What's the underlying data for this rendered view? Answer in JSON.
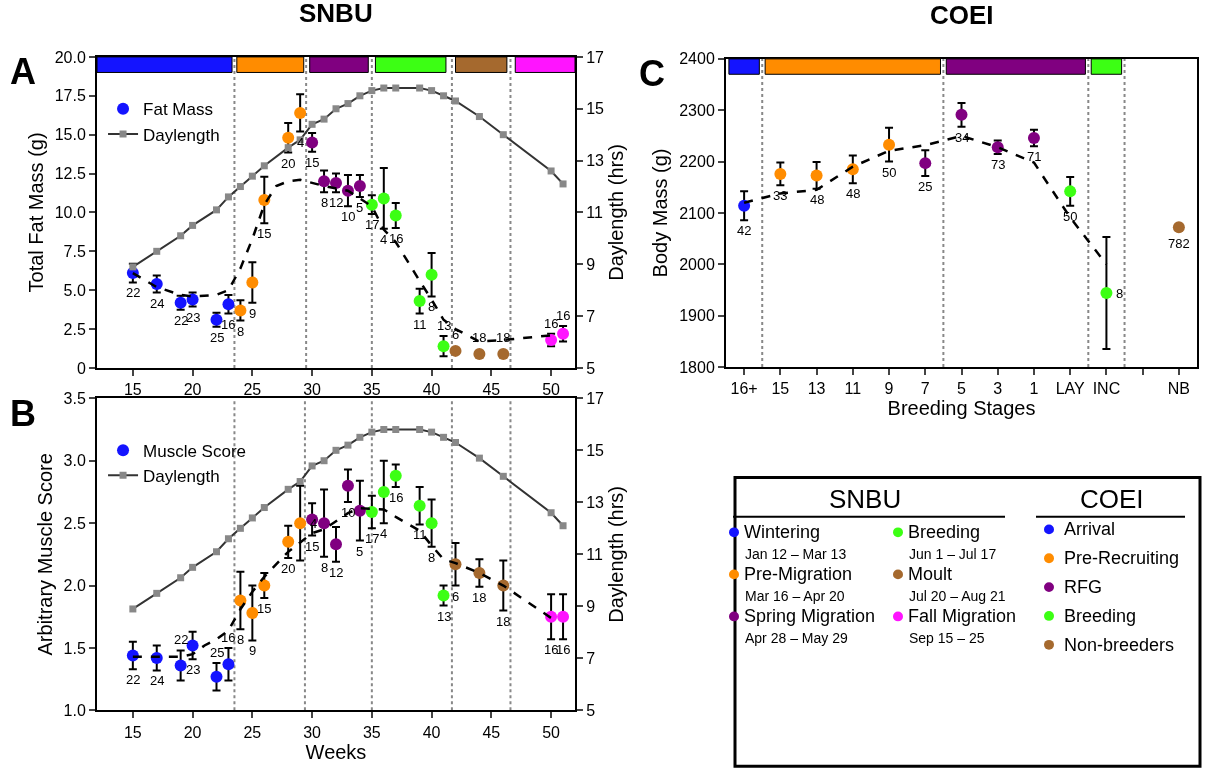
{
  "chart_data": [
    {
      "type": "scatter",
      "title": "SNBU",
      "xlim": [
        12,
        52
      ],
      "xticks": [
        15,
        20,
        25,
        30,
        35,
        40,
        45,
        50
      ],
      "ylabel": "Total Fat Mass (g)",
      "ylim": [
        0,
        20
      ],
      "yticks": [
        0,
        2.5,
        {
          "value": 5,
          "label": "5.0"
        },
        7.5,
        {
          "value": 10,
          "label": "10.0"
        },
        12.5,
        {
          "value": 15,
          "label": "15.0"
        },
        17.5,
        {
          "value": 20,
          "label": "20.0"
        }
      ],
      "y2label": "Daylength (hrs)",
      "y2lim": [
        5,
        17
      ],
      "y2ticks": [
        5,
        7,
        9,
        11,
        13,
        15,
        17
      ],
      "legend": "top left",
      "marker": "circle",
      "annotations": [
        "A",
        {
          "text": "22",
          "x": 15,
          "y": 6.1
        },
        {
          "text": "24",
          "x": 17,
          "y": 5.4
        },
        {
          "text": "22",
          "x": 19,
          "y": 4.2
        },
        {
          "text": "23",
          "x": 20,
          "y": 4.4
        },
        {
          "text": "25",
          "x": 22,
          "y": 3.1
        },
        {
          "text": "16",
          "x": 23,
          "y": 4.1
        },
        {
          "text": "8",
          "x": 24,
          "y": 3.7
        },
        {
          "text": "9",
          "x": 25,
          "y": 5.5
        },
        {
          "text": "15",
          "x": 26,
          "y": 10.8
        },
        {
          "text": "20",
          "x": 28,
          "y": 14.8
        },
        {
          "text": "4",
          "x": 29,
          "y": 16.4
        },
        {
          "text": "15",
          "x": 30,
          "y": 14.5
        },
        {
          "text": "8",
          "x": 31,
          "y": 12.0
        },
        {
          "text": "12",
          "x": 32,
          "y": 11.9
        },
        {
          "text": "10",
          "x": 33,
          "y": 11.4
        },
        {
          "text": "5",
          "x": 34,
          "y": 11.7
        },
        {
          "text": "17",
          "x": 35,
          "y": 10.5
        },
        {
          "text": "4",
          "x": 36,
          "y": 10.9
        },
        {
          "text": "16",
          "x": 37,
          "y": 9.8
        },
        {
          "text": "11",
          "x": 39,
          "y": 4.3
        },
        {
          "text": "8",
          "x": 40,
          "y": 6.0
        },
        {
          "text": "13",
          "x": 41,
          "y": 1.4
        },
        {
          "text": "6",
          "x": 42,
          "y": 1.1
        },
        {
          "text": "18",
          "x": 44,
          "y": 0.9
        },
        {
          "text": "18",
          "x": 46,
          "y": 0.9
        },
        {
          "text": "16",
          "x": 50,
          "y": 1.8
        },
        {
          "text": "16",
          "x": 51,
          "y": 2.2
        }
      ],
      "ref_lines": [
        {
          "axis": "x",
          "value": 23.5,
          "color": "#888888",
          "line_style": "dotted"
        },
        {
          "axis": "x",
          "value": 29.5,
          "color": "#888888",
          "line_style": "dotted"
        },
        {
          "axis": "x",
          "value": 35,
          "color": "#888888",
          "line_style": "dotted"
        },
        {
          "axis": "x",
          "value": 41.7,
          "color": "#888888",
          "line_style": "dotted"
        },
        {
          "axis": "x",
          "value": 46.6,
          "color": "#888888",
          "line_style": "dotted"
        }
      ],
      "bands": [
        {
          "axis": "x",
          "from": 12,
          "to": 23.3,
          "color": "#1414ff"
        },
        {
          "axis": "x",
          "from": 23.7,
          "to": 29.3,
          "color": "#ff8c00"
        },
        {
          "axis": "x",
          "from": 29.8,
          "to": 34.7,
          "color": "#800080"
        },
        {
          "axis": "x",
          "from": 35.3,
          "to": 41.2,
          "color": "#3cff14"
        },
        {
          "axis": "x",
          "from": 42.0,
          "to": 46.3,
          "color": "#a5692e"
        },
        {
          "axis": "x",
          "from": 47.0,
          "to": 52,
          "color": "#ff14ff"
        }
      ],
      "series": [
        {
          "name": "Fat Mass",
          "type": "scatter",
          "x": [
            15,
            17,
            19,
            20,
            22,
            23,
            24,
            25,
            26,
            28,
            29,
            30,
            31,
            32,
            33,
            34,
            35,
            36,
            37,
            39,
            40,
            41,
            42,
            44,
            46,
            50,
            51
          ],
          "values": [
            6.1,
            5.4,
            4.2,
            4.4,
            3.1,
            4.1,
            3.7,
            5.5,
            10.8,
            14.8,
            16.4,
            14.5,
            12.0,
            11.9,
            11.4,
            11.7,
            10.5,
            10.9,
            9.8,
            4.3,
            6.0,
            1.4,
            1.1,
            0.9,
            0.9,
            1.8,
            2.2
          ],
          "errors": [
            0.6,
            0.55,
            0.45,
            0.45,
            0.45,
            0.6,
            0.65,
            1.3,
            1.5,
            0.95,
            1.2,
            0.6,
            0.7,
            0.6,
            1.0,
            0.7,
            0.6,
            1.95,
            0.8,
            0.8,
            1.4,
            0.65,
            null,
            null,
            null,
            0.4,
            0.5
          ],
          "colors": [
            "#1414ff",
            "#1414ff",
            "#1414ff",
            "#1414ff",
            "#1414ff",
            "#1414ff",
            "#ff8c00",
            "#ff8c00",
            "#ff8c00",
            "#ff8c00",
            "#ff8c00",
            "#800080",
            "#800080",
            "#800080",
            "#800080",
            "#800080",
            "#3cff14",
            "#3cff14",
            "#3cff14",
            "#3cff14",
            "#3cff14",
            "#3cff14",
            "#a5692e",
            "#a5692e",
            "#a5692e",
            "#ff14ff",
            "#ff14ff"
          ]
        },
        {
          "type": "line",
          "line_style": "dashed",
          "marker": "none",
          "color": "#000000",
          "x": [
            15,
            17,
            19,
            20,
            22,
            23,
            24,
            25,
            26,
            27,
            28,
            29,
            30,
            31,
            33,
            35,
            36,
            37,
            39,
            40,
            41,
            42,
            44,
            46,
            50
          ],
          "values": [
            6.1,
            5.2,
            4.7,
            4.6,
            4.7,
            5.0,
            6.4,
            8.3,
            10.5,
            11.7,
            12.0,
            12.1,
            11.9,
            11.7,
            11.4,
            10.4,
            8.9,
            8.1,
            5.6,
            4.4,
            3.1,
            2.5,
            1.7,
            1.8,
            2.1
          ]
        },
        {
          "name": "Daylength",
          "type": "line",
          "axis": "y2",
          "marker": "square",
          "color": "#333333",
          "x": [
            15,
            17,
            19,
            20,
            22,
            23,
            24,
            25,
            26,
            28,
            29,
            30,
            31,
            32,
            33,
            34,
            35,
            36,
            37,
            39,
            40,
            41,
            42,
            44,
            46,
            50,
            51
          ],
          "values": [
            8.9,
            9.5,
            10.1,
            10.5,
            11.1,
            11.6,
            12.0,
            12.4,
            12.8,
            13.5,
            13.8,
            14.4,
            14.6,
            15.0,
            15.2,
            15.5,
            15.7,
            15.8,
            15.8,
            15.8,
            15.7,
            15.5,
            15.3,
            14.7,
            14.0,
            12.6,
            12.1
          ]
        }
      ]
    },
    {
      "type": "scatter",
      "xlabel": "Weeks",
      "xlim": [
        12,
        52
      ],
      "xticks": [
        15,
        20,
        25,
        30,
        35,
        40,
        45,
        50
      ],
      "ylabel": "Arbitrary Muscle Score",
      "ylim": [
        1,
        3.5
      ],
      "yticks": [
        {
          "value": 1,
          "label": "1.0"
        },
        1.5,
        {
          "value": 2,
          "label": "2.0"
        },
        2.5,
        {
          "value": 3,
          "label": "3.0"
        },
        3.5
      ],
      "y2label": "Daylength (hrs)",
      "y2lim": [
        5,
        17
      ],
      "y2ticks": [
        5,
        7,
        9,
        11,
        13,
        15,
        17
      ],
      "legend": "top left",
      "marker": "circle",
      "annotations": [
        "B",
        {
          "text": "22",
          "x": 15,
          "y": 1.44
        },
        {
          "text": "24",
          "x": 17,
          "y": 1.42
        },
        {
          "text": "22",
          "x": 19,
          "y": 1.36
        },
        {
          "text": "23",
          "x": 20,
          "y": 1.52
        },
        {
          "text": "25",
          "x": 22,
          "y": 1.27
        },
        {
          "text": "16",
          "x": 23,
          "y": 1.37
        },
        {
          "text": "8",
          "x": 24,
          "y": 1.88
        },
        {
          "text": "9",
          "x": 25,
          "y": 1.78
        },
        {
          "text": "15",
          "x": 26,
          "y": 2.0
        },
        {
          "text": "20",
          "x": 28,
          "y": 2.35
        },
        {
          "text": "4",
          "x": 29,
          "y": 2.5
        },
        {
          "text": "15",
          "x": 30,
          "y": 2.53
        },
        {
          "text": "8",
          "x": 31,
          "y": 2.5
        },
        {
          "text": "12",
          "x": 32,
          "y": 2.33
        },
        {
          "text": "10",
          "x": 33,
          "y": 2.8
        },
        {
          "text": "5",
          "x": 34,
          "y": 2.6
        },
        {
          "text": "17",
          "x": 35,
          "y": 2.59
        },
        {
          "text": "4",
          "x": 36,
          "y": 2.75
        },
        {
          "text": "16",
          "x": 37,
          "y": 2.88
        },
        {
          "text": "11",
          "x": 39,
          "y": 2.64
        },
        {
          "text": "8",
          "x": 40,
          "y": 2.5
        },
        {
          "text": "13",
          "x": 41,
          "y": 1.92
        },
        {
          "text": "6",
          "x": 42,
          "y": 2.17
        },
        {
          "text": "18",
          "x": 44,
          "y": 2.1
        },
        {
          "text": "18",
          "x": 46,
          "y": 2.0
        },
        {
          "text": "16",
          "x": 50,
          "y": 1.75
        },
        {
          "text": "16",
          "x": 51,
          "y": 1.75
        }
      ],
      "ref_lines": [
        {
          "axis": "x",
          "value": 23.5,
          "color": "#888888",
          "line_style": "dotted"
        },
        {
          "axis": "x",
          "value": 29.4,
          "color": "#888888",
          "line_style": "dotted"
        },
        {
          "axis": "x",
          "value": 35,
          "color": "#888888",
          "line_style": "dotted"
        },
        {
          "axis": "x",
          "value": 41.7,
          "color": "#888888",
          "line_style": "dotted"
        },
        {
          "axis": "x",
          "value": 46.6,
          "color": "#888888",
          "line_style": "dotted"
        }
      ],
      "series": [
        {
          "name": "Muscle Score",
          "type": "scatter",
          "x": [
            15,
            17,
            19,
            20,
            22,
            23,
            24,
            25,
            26,
            28,
            29,
            30,
            31,
            32,
            33,
            34,
            35,
            36,
            37,
            39,
            40,
            41,
            42,
            44,
            46,
            50,
            51
          ],
          "values": [
            1.44,
            1.42,
            1.36,
            1.52,
            1.27,
            1.37,
            1.88,
            1.78,
            2.0,
            2.35,
            2.5,
            2.53,
            2.5,
            2.33,
            2.8,
            2.6,
            2.59,
            2.75,
            2.88,
            2.64,
            2.5,
            1.92,
            2.17,
            2.1,
            2.0,
            1.75,
            1.75
          ],
          "errors": [
            0.11,
            0.1,
            0.12,
            0.11,
            0.11,
            0.13,
            0.23,
            0.22,
            0.1,
            0.13,
            0.3,
            0.13,
            0.27,
            0.14,
            0.13,
            0.24,
            0.13,
            0.25,
            0.09,
            0.15,
            0.19,
            0.08,
            0.17,
            0.11,
            0.2,
            0.18,
            0.18
          ],
          "colors": [
            "#1414ff",
            "#1414ff",
            "#1414ff",
            "#1414ff",
            "#1414ff",
            "#1414ff",
            "#ff8c00",
            "#ff8c00",
            "#ff8c00",
            "#ff8c00",
            "#ff8c00",
            "#800080",
            "#800080",
            "#800080",
            "#800080",
            "#800080",
            "#3cff14",
            "#3cff14",
            "#3cff14",
            "#3cff14",
            "#3cff14",
            "#3cff14",
            "#a5692e",
            "#a5692e",
            "#a5692e",
            "#ff14ff",
            "#ff14ff"
          ]
        },
        {
          "type": "line",
          "line_style": "dashed",
          "marker": "none",
          "color": "#000000",
          "x": [
            15,
            17,
            19,
            20,
            21,
            22,
            23,
            24,
            25,
            26,
            28,
            30,
            31,
            33,
            34,
            36,
            37,
            39,
            40,
            41,
            42,
            44,
            46,
            50
          ],
          "values": [
            1.43,
            1.43,
            1.43,
            1.45,
            1.52,
            1.57,
            1.64,
            1.81,
            1.95,
            2.07,
            2.27,
            2.42,
            2.45,
            2.58,
            2.62,
            2.61,
            2.55,
            2.44,
            2.32,
            2.21,
            2.18,
            2.1,
            2.0,
            1.74
          ]
        },
        {
          "name": "Daylength",
          "type": "line",
          "axis": "y2",
          "marker": "square",
          "color": "#333333",
          "x": [
            15,
            17,
            19,
            20,
            22,
            23,
            24,
            25,
            26,
            28,
            29,
            30,
            31,
            32,
            33,
            34,
            35,
            36,
            37,
            39,
            40,
            41,
            42,
            44,
            46,
            50,
            51
          ],
          "values": [
            8.9,
            9.5,
            10.1,
            10.5,
            11.1,
            11.6,
            12.0,
            12.4,
            12.8,
            13.5,
            13.8,
            14.4,
            14.6,
            15.0,
            15.2,
            15.5,
            15.7,
            15.8,
            15.8,
            15.8,
            15.7,
            15.5,
            15.3,
            14.7,
            14.0,
            12.6,
            12.1
          ]
        }
      ]
    },
    {
      "type": "scatter",
      "title": "COEI",
      "categories": [
        "16+",
        "15",
        "13",
        "11",
        "9",
        "7",
        "5",
        "3",
        "1",
        "LAY",
        "INC",
        null,
        "NB"
      ],
      "xlabel": "Breeding Stages",
      "ylabel": "Body Mass (g)",
      "ylim": [
        1800,
        2400
      ],
      "yticks": [
        1800,
        1900,
        2000,
        2100,
        2200,
        2300,
        2400
      ],
      "marker": "circle",
      "annotations": [
        "C",
        {
          "text": "42",
          "x": "16+",
          "y": 2114
        },
        {
          "text": "33",
          "x": "15",
          "y": 2176
        },
        {
          "text": "48",
          "x": "13",
          "y": 2173
        },
        {
          "text": "48",
          "x": "11",
          "y": 2185
        },
        {
          "text": "50",
          "x": "9",
          "y": 2233
        },
        {
          "text": "25",
          "x": "7",
          "y": 2197
        },
        {
          "text": "34",
          "x": "5",
          "y": 2291
        },
        {
          "text": "73",
          "x": "3",
          "y": 2228
        },
        {
          "text": "71",
          "x": "1",
          "y": 2246
        },
        {
          "text": "50",
          "x": "LAY",
          "y": 2142
        },
        {
          "text": "8",
          "x": "INC",
          "y": 1944
        },
        {
          "text": "782",
          "x": "NB",
          "y": 2072
        }
      ],
      "bands": [
        {
          "axis": "x",
          "from": "16+",
          "to": "16+",
          "color": "#1414ff"
        },
        {
          "axis": "x",
          "from": "15",
          "to": "7",
          "color": "#ff8c00"
        },
        {
          "axis": "x",
          "from": "5",
          "to": "LAY",
          "color": "#800080"
        },
        {
          "axis": "x",
          "from": "INC",
          "to": "INC",
          "color": "#3cff14"
        }
      ],
      "series": [
        {
          "type": "scatter",
          "values": [
            2114,
            2176,
            2173,
            2185,
            2233,
            2197,
            2291,
            2228,
            2246,
            2142,
            1944,
            null,
            2072
          ],
          "errors": [
            28,
            22,
            26,
            27,
            33,
            25,
            23,
            13,
            16,
            28,
            109,
            null,
            null
          ],
          "colors": [
            "#1414ff",
            "#ff8c00",
            "#ff8c00",
            "#ff8c00",
            "#ff8c00",
            "#800080",
            "#800080",
            "#800080",
            "#800080",
            "#3cff14",
            "#3cff14",
            null,
            "#a5692e"
          ]
        },
        {
          "type": "line",
          "line_style": "dashed",
          "marker": "none",
          "color": "#000000",
          "values": [
            2120,
            2138,
            2145,
            2190,
            2221,
            2232,
            2250,
            2228,
            2198,
            2091,
            2000,
            null,
            null
          ]
        }
      ]
    },
    {
      "type": "other",
      "annotations": [
        "SNBU",
        "COEI",
        "Jan 12 – Mar 13",
        "Mar 16 – Apr 20",
        "Apr 28 – May 29",
        "Jun 1 – Jul 17",
        "Jul 20 – Aug 21",
        "Sep 15 – 25"
      ],
      "series": [
        {
          "name": "Wintering",
          "color": "#1414ff"
        },
        {
          "name": "Pre-Migration",
          "color": "#ff8c00"
        },
        {
          "name": "Spring Migration",
          "color": "#800080"
        },
        {
          "name": "Breeding",
          "color": "#3cff14"
        },
        {
          "name": "Moult",
          "color": "#a5692e"
        },
        {
          "name": "Fall Migration",
          "color": "#ff14ff"
        },
        {
          "name": "Arrival",
          "color": "#1414ff"
        },
        {
          "name": "Pre-Recruiting",
          "color": "#ff8c00"
        },
        {
          "name": "RFG",
          "color": "#800080"
        },
        {
          "name": "Breeding",
          "color": "#3cff14"
        },
        {
          "name": "Non-breeders",
          "color": "#a5692e"
        }
      ]
    }
  ]
}
